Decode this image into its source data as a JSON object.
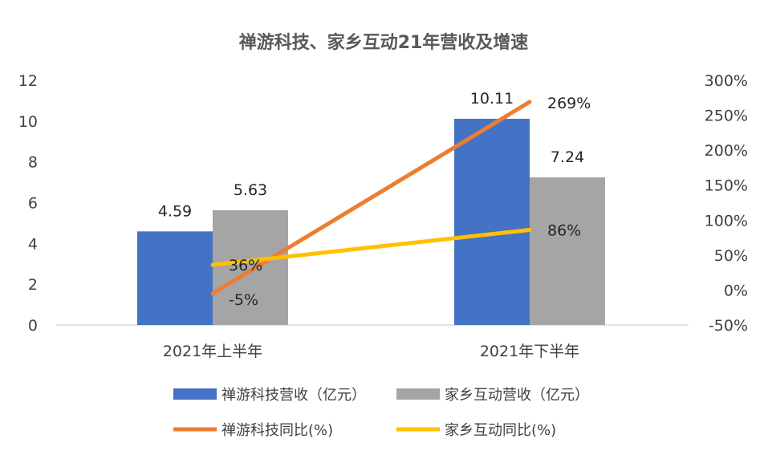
{
  "chart_data": {
    "type": "bar",
    "title": "禅游科技、家乡互动21年营收及增速",
    "categories": [
      "2021年上半年",
      "2021年下半年"
    ],
    "series": [
      {
        "name": "禅游科技营收（亿元）",
        "type": "bar",
        "axis": "left",
        "color": "#4472C4",
        "values": [
          4.59,
          10.11
        ],
        "labels": [
          "4.59",
          "10.11"
        ]
      },
      {
        "name": "家乡互动营收（亿元）",
        "type": "bar",
        "axis": "left",
        "color": "#A5A5A5",
        "values": [
          5.63,
          7.24
        ],
        "labels": [
          "5.63",
          "7.24"
        ]
      },
      {
        "name": "禅游科技同比(%)",
        "type": "line",
        "axis": "right",
        "color": "#ED7D31",
        "values": [
          -5,
          269
        ],
        "labels": [
          "-5%",
          "269%"
        ]
      },
      {
        "name": "家乡互动同比(%)",
        "type": "line",
        "axis": "right",
        "color": "#FFC000",
        "values": [
          36,
          86
        ],
        "labels": [
          "36%",
          "86%"
        ]
      }
    ],
    "y_left": {
      "min": 0,
      "max": 12,
      "ticks": [
        "0",
        "2",
        "4",
        "6",
        "8",
        "10",
        "12"
      ]
    },
    "y_right": {
      "min": -50,
      "max": 300,
      "ticks": [
        "-50%",
        "0%",
        "50%",
        "100%",
        "150%",
        "200%",
        "250%",
        "300%"
      ]
    },
    "grid": false,
    "legend_position": "bottom"
  }
}
